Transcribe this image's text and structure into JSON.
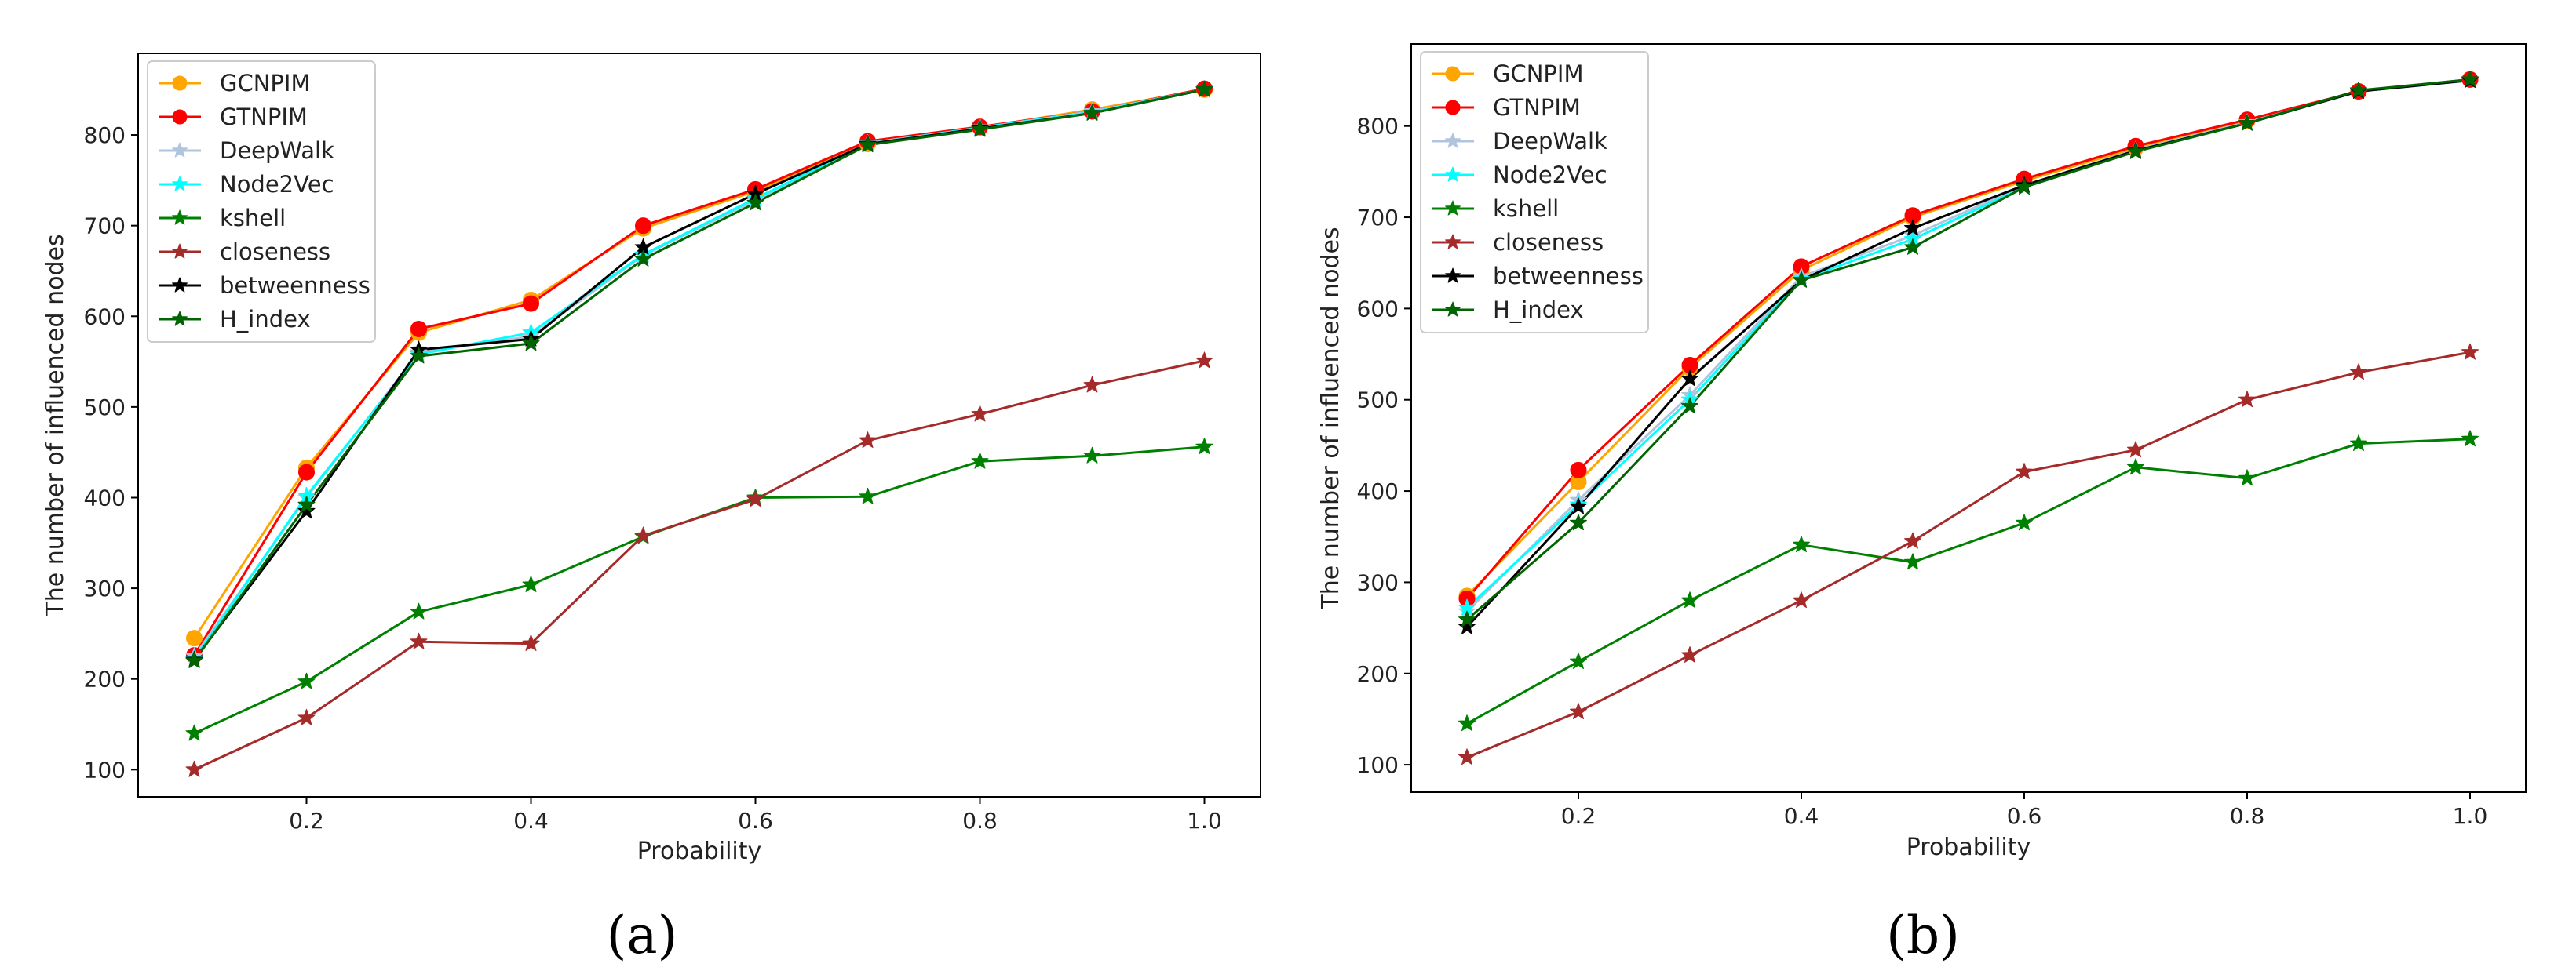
{
  "chart_data": [
    {
      "type": "line",
      "caption": "(a)",
      "xlabel": "Probability",
      "ylabel": "The number of influenced nodes",
      "xlim": [
        0.05,
        1.05
      ],
      "ylim": [
        70,
        890
      ],
      "xticks": [
        0.2,
        0.4,
        0.6,
        0.8,
        1.0
      ],
      "xtick_labels": [
        "0.2",
        "0.4",
        "0.6",
        "0.8",
        "1.0"
      ],
      "yticks": [
        100,
        200,
        300,
        400,
        500,
        600,
        700,
        800
      ],
      "x": [
        0.1,
        0.2,
        0.3,
        0.4,
        0.5,
        0.6,
        0.7,
        0.8,
        0.9,
        1.0
      ],
      "legend_position": "top-left",
      "series": [
        {
          "name": "GCNPIM",
          "color": "#ffa500",
          "marker": "circle",
          "values": [
            245,
            433,
            582,
            618,
            697,
            738,
            790,
            808,
            828,
            850
          ]
        },
        {
          "name": "GTNPIM",
          "color": "#ff0000",
          "marker": "circle",
          "values": [
            226,
            428,
            586,
            614,
            700,
            740,
            793,
            809,
            826,
            851
          ]
        },
        {
          "name": "DeepWalk",
          "color": "#b0c4de",
          "marker": "star",
          "values": [
            225,
            400,
            560,
            578,
            667,
            728,
            791,
            808,
            826,
            850
          ]
        },
        {
          "name": "Node2Vec",
          "color": "#00ffff",
          "marker": "star",
          "values": [
            222,
            402,
            558,
            582,
            668,
            730,
            790,
            808,
            825,
            850
          ]
        },
        {
          "name": "kshell",
          "color": "#008000",
          "marker": "star",
          "values": [
            140,
            197,
            274,
            304,
            357,
            400,
            401,
            440,
            446,
            456
          ]
        },
        {
          "name": "closeness",
          "color": "#a52a2a",
          "marker": "star",
          "values": [
            100,
            157,
            241,
            239,
            358,
            398,
            463,
            492,
            524,
            551
          ]
        },
        {
          "name": "betweenness",
          "color": "#000000",
          "marker": "star",
          "values": [
            221,
            385,
            563,
            575,
            676,
            735,
            790,
            807,
            824,
            850
          ]
        },
        {
          "name": "H_index",
          "color": "#006400",
          "marker": "star",
          "values": [
            220,
            392,
            556,
            570,
            663,
            725,
            789,
            806,
            824,
            850
          ]
        }
      ]
    },
    {
      "type": "line",
      "caption": "(b)",
      "xlabel": "Probability",
      "ylabel": "The number of influenced nodes",
      "xlim": [
        0.05,
        1.05
      ],
      "ylim": [
        70,
        890
      ],
      "xticks": [
        0.2,
        0.4,
        0.6,
        0.8,
        1.0
      ],
      "xtick_labels": [
        "0.2",
        "0.4",
        "0.6",
        "0.8",
        "1.0"
      ],
      "yticks": [
        100,
        200,
        300,
        400,
        500,
        600,
        700,
        800
      ],
      "x": [
        0.1,
        0.2,
        0.3,
        0.4,
        0.5,
        0.6,
        0.7,
        0.8,
        0.9,
        1.0
      ],
      "legend_position": "top-left",
      "series": [
        {
          "name": "GCNPIM",
          "color": "#ffa500",
          "marker": "circle",
          "values": [
            285,
            410,
            535,
            642,
            700,
            740,
            776,
            806,
            838,
            851
          ]
        },
        {
          "name": "GTNPIM",
          "color": "#ff0000",
          "marker": "circle",
          "values": [
            282,
            423,
            538,
            646,
            702,
            742,
            778,
            807,
            838,
            851
          ]
        },
        {
          "name": "DeepWalk",
          "color": "#b0c4de",
          "marker": "star",
          "values": [
            268,
            390,
            505,
            635,
            680,
            735,
            774,
            804,
            838,
            850
          ]
        },
        {
          "name": "Node2Vec",
          "color": "#00ffff",
          "marker": "star",
          "values": [
            272,
            385,
            500,
            632,
            676,
            733,
            773,
            803,
            838,
            850
          ]
        },
        {
          "name": "kshell",
          "color": "#008000",
          "marker": "star",
          "values": [
            145,
            213,
            280,
            341,
            322,
            365,
            426,
            414,
            452,
            457
          ]
        },
        {
          "name": "closeness",
          "color": "#a52a2a",
          "marker": "star",
          "values": [
            108,
            158,
            220,
            280,
            345,
            421,
            445,
            500,
            530,
            552
          ]
        },
        {
          "name": "betweenness",
          "color": "#000000",
          "marker": "star",
          "values": [
            251,
            383,
            523,
            631,
            688,
            735,
            773,
            803,
            838,
            850
          ]
        },
        {
          "name": "H_index",
          "color": "#006400",
          "marker": "star",
          "values": [
            259,
            365,
            493,
            631,
            667,
            733,
            772,
            803,
            839,
            851
          ]
        }
      ]
    }
  ]
}
